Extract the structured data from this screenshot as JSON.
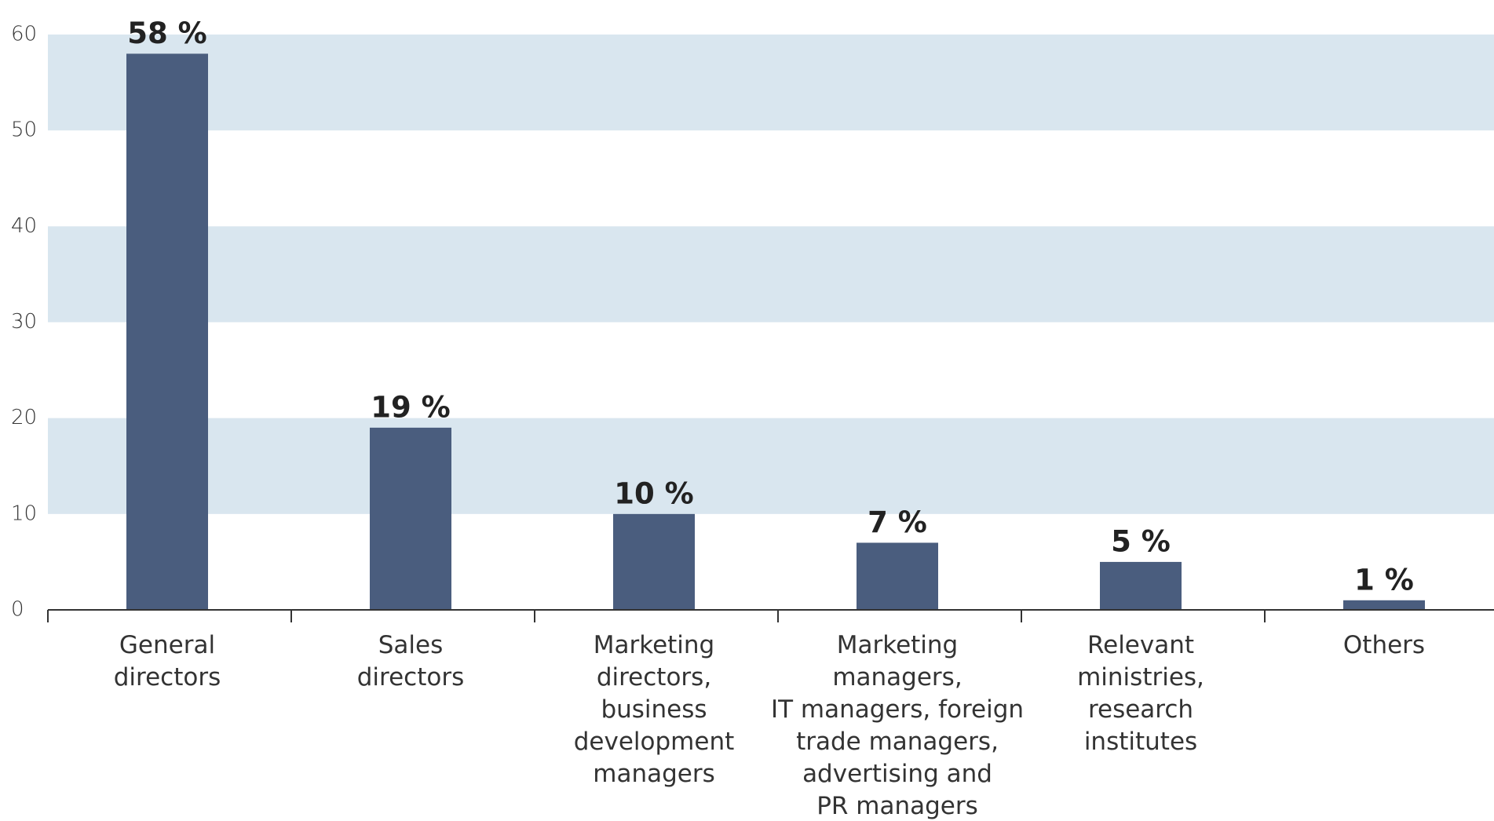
{
  "chart_data": {
    "type": "bar",
    "categories": [
      "General\ndirectors",
      "Sales\ndirectors",
      "Marketing\ndirectors,\nbusiness\ndevelopment\nmanagers",
      "Marketing\nmanagers,\nIT managers, foreign\ntrade managers,\nadvertising and\nPR managers",
      "Relevant\nministries,\nresearch\ninstitutes",
      "Others"
    ],
    "values": [
      58,
      19,
      10,
      7,
      5,
      1
    ],
    "value_labels": [
      "58 %",
      "19 %",
      "10 %",
      "7 %",
      "5 %",
      "1 %"
    ],
    "color": "#4a5d7e",
    "ylim": [
      0,
      60
    ],
    "yticks": [
      0,
      10,
      20,
      30,
      40,
      50,
      60
    ],
    "grid": "bands",
    "band_color": "#d9e6ef"
  }
}
